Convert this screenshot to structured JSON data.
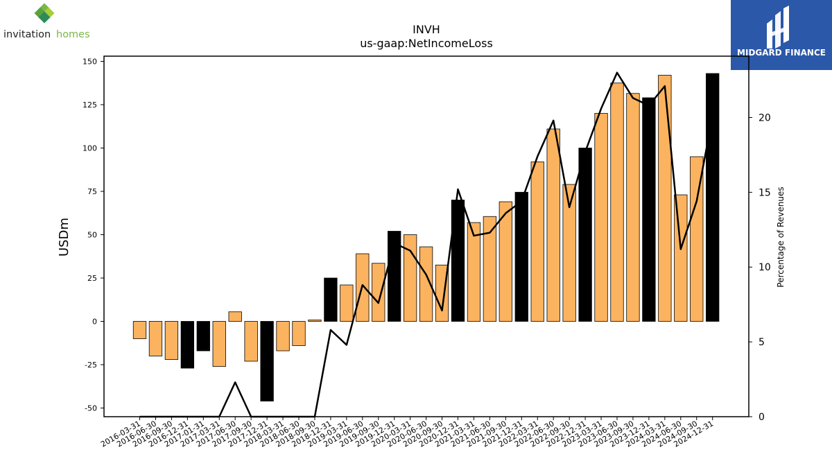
{
  "brand_left": {
    "name_dark": "invitation",
    "name_light": "homes",
    "accent": "#7ab648"
  },
  "brand_right": {
    "name": "MIDGARD FINANCE",
    "bg": "#2b58a8"
  },
  "chart_data": {
    "type": "bar",
    "title": "INVH",
    "subtitle": "us-gaap:NetIncomeLoss",
    "ylabel": "USDm",
    "y2label": "Percentage of Revenues",
    "ylim": [
      -55,
      153
    ],
    "y2lim": [
      0,
      24.1
    ],
    "yticks": [
      -50,
      -25,
      0,
      25,
      50,
      75,
      100,
      125,
      150
    ],
    "y2ticks": [
      0,
      5,
      10,
      15,
      20
    ],
    "categories": [
      "2016-03-31",
      "2016-06-30",
      "2016-09-30",
      "2016-12-31",
      "2017-01-31",
      "2017-03-31",
      "2017-06-30",
      "2017-09-30",
      "2017-12-31",
      "2018-03-31",
      "2018-06-30",
      "2018-09-30",
      "2018-12-31",
      "2019-03-31",
      "2019-06-30",
      "2019-09-30",
      "2019-12-31",
      "2020-03-31",
      "2020-06-30",
      "2020-09-30",
      "2020-12-31",
      "2021-03-31",
      "2021-06-30",
      "2021-09-30",
      "2021-12-31",
      "2022-03-31",
      "2022-06-30",
      "2022-09-30",
      "2022-12-31",
      "2023-03-31",
      "2023-06-30",
      "2023-09-30",
      "2023-12-31",
      "2024-03-31",
      "2024-06-30",
      "2024-09-30",
      "2024-12-31"
    ],
    "series": [
      {
        "values": [
          -10,
          -20,
          -22,
          -27,
          -17,
          -26,
          5.5,
          -23,
          -46,
          -17,
          -14,
          0.8,
          25,
          21,
          39,
          33.5,
          52,
          50,
          43,
          32.5,
          70,
          57,
          60.5,
          69,
          74.5,
          92,
          111,
          79,
          100,
          120,
          137.5,
          131.5,
          129,
          142,
          73,
          95,
          143
        ],
        "kinds": [
          "q",
          "q",
          "q",
          "a",
          "a",
          "q",
          "q",
          "q",
          "a",
          "q",
          "q",
          "q",
          "a",
          "q",
          "q",
          "q",
          "a",
          "q",
          "q",
          "q",
          "a",
          "q",
          "q",
          "q",
          "a",
          "q",
          "q",
          "q",
          "a",
          "q",
          "q",
          "q",
          "a",
          "q",
          "q",
          "q",
          "a"
        ]
      },
      {
        "values": [
          0,
          0,
          0,
          0,
          0,
          0,
          2.3,
          0,
          0,
          0,
          0,
          0,
          5.8,
          4.8,
          8.8,
          7.6,
          11.6,
          11.1,
          9.5,
          7.1,
          15.2,
          12.1,
          12.3,
          13.6,
          14.4,
          17.4,
          19.8,
          14,
          17.7,
          20.6,
          23,
          21.3,
          20.8,
          22.1,
          11.2,
          14.4,
          20.1
        ]
      }
    ],
    "colors": {
      "quarter": "#fbb360",
      "annual": "#000000",
      "line": "#000000"
    }
  }
}
